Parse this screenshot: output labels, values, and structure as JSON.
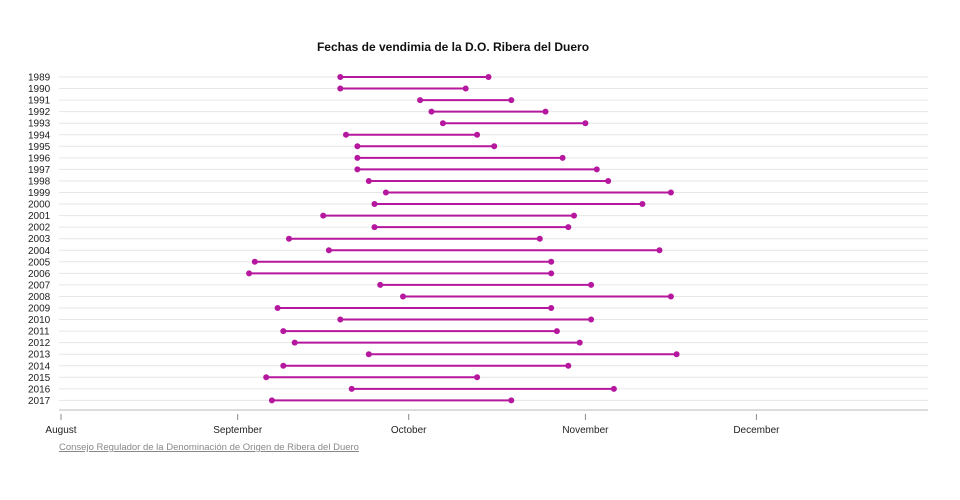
{
  "source_link": "Consejo Regulador de la Denominación de Origen de Ribera del Duero",
  "chart_data": {
    "type": "dumbbell",
    "title": "Fechas de vendimia de la D.O. Ribera del Duero",
    "color": "#b5179e",
    "x_axis": {
      "ticks": [
        "August",
        "September",
        "October",
        "November",
        "December"
      ],
      "range": [
        "08-01",
        "12-31"
      ]
    },
    "grid": true,
    "rows": [
      {
        "year": "1989",
        "start": "09-19",
        "end": "10-15"
      },
      {
        "year": "1990",
        "start": "09-19",
        "end": "10-11"
      },
      {
        "year": "1991",
        "start": "10-03",
        "end": "10-19"
      },
      {
        "year": "1992",
        "start": "10-05",
        "end": "10-25"
      },
      {
        "year": "1993",
        "start": "10-07",
        "end": "11-01"
      },
      {
        "year": "1994",
        "start": "09-20",
        "end": "10-13"
      },
      {
        "year": "1995",
        "start": "09-22",
        "end": "10-16"
      },
      {
        "year": "1996",
        "start": "09-22",
        "end": "10-28"
      },
      {
        "year": "1997",
        "start": "09-22",
        "end": "11-03"
      },
      {
        "year": "1998",
        "start": "09-24",
        "end": "11-05"
      },
      {
        "year": "1999",
        "start": "09-27",
        "end": "11-16"
      },
      {
        "year": "2000",
        "start": "09-25",
        "end": "11-11"
      },
      {
        "year": "2001",
        "start": "09-16",
        "end": "10-30"
      },
      {
        "year": "2002",
        "start": "09-25",
        "end": "10-29"
      },
      {
        "year": "2003",
        "start": "09-10",
        "end": "10-24"
      },
      {
        "year": "2004",
        "start": "09-17",
        "end": "11-14"
      },
      {
        "year": "2005",
        "start": "09-04",
        "end": "10-26"
      },
      {
        "year": "2006",
        "start": "09-03",
        "end": "10-26"
      },
      {
        "year": "2007",
        "start": "09-26",
        "end": "11-02"
      },
      {
        "year": "2008",
        "start": "09-30",
        "end": "11-16"
      },
      {
        "year": "2009",
        "start": "09-08",
        "end": "10-26"
      },
      {
        "year": "2010",
        "start": "09-19",
        "end": "11-02"
      },
      {
        "year": "2011",
        "start": "09-09",
        "end": "10-27"
      },
      {
        "year": "2012",
        "start": "09-11",
        "end": "10-31"
      },
      {
        "year": "2013",
        "start": "09-24",
        "end": "11-17"
      },
      {
        "year": "2014",
        "start": "09-09",
        "end": "10-29"
      },
      {
        "year": "2015",
        "start": "09-06",
        "end": "10-13"
      },
      {
        "year": "2016",
        "start": "09-21",
        "end": "11-06"
      },
      {
        "year": "2017",
        "start": "09-07",
        "end": "10-19"
      }
    ]
  }
}
